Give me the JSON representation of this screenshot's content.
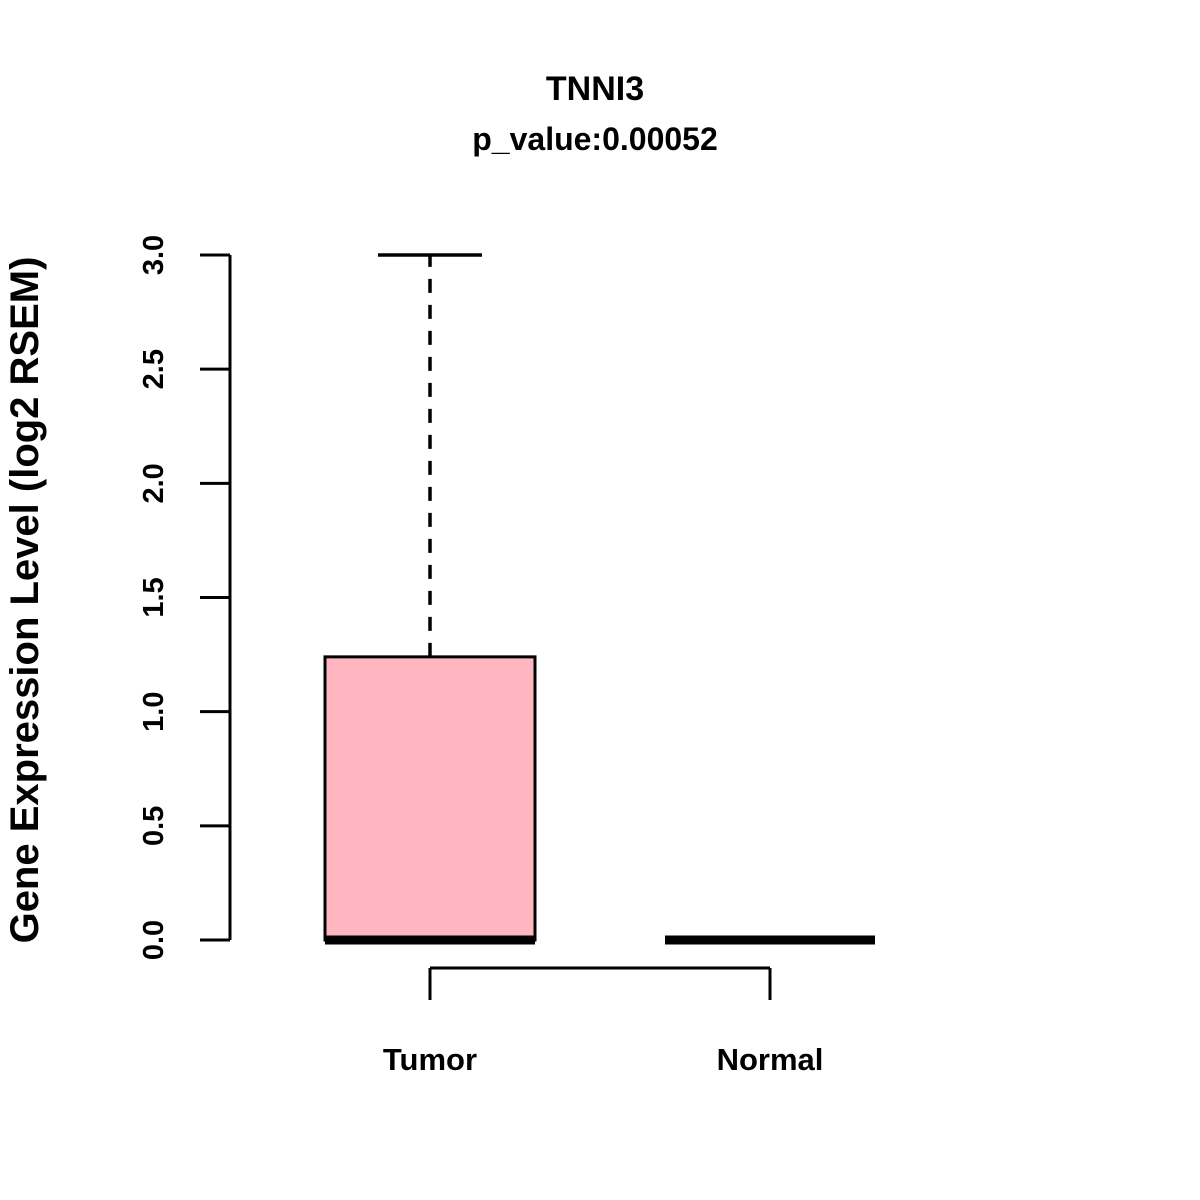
{
  "chart_data": {
    "type": "boxplot",
    "title": "TNNI3",
    "subtitle": "p_value:0.00052",
    "ylabel": "Gene Expression Level (log2 RSEM)",
    "categories": [
      "Tumor",
      "Normal"
    ],
    "series": [
      {
        "name": "Tumor",
        "min": 0,
        "q1": 0,
        "median": 0,
        "q3": 1.24,
        "max": 3.0,
        "whisker_style": "dashed"
      },
      {
        "name": "Normal",
        "min": 0,
        "q1": 0,
        "median": 0,
        "q3": 0,
        "max": 0,
        "whisker_style": "dashed"
      }
    ],
    "yticks": [
      0.0,
      0.5,
      1.0,
      1.5,
      2.0,
      2.5,
      3.0
    ],
    "ylim": [
      0,
      3
    ],
    "grid": false,
    "legend": "none",
    "box_fill": "#ffb6c1",
    "stroke": "#000000",
    "background": "#ffffff"
  }
}
